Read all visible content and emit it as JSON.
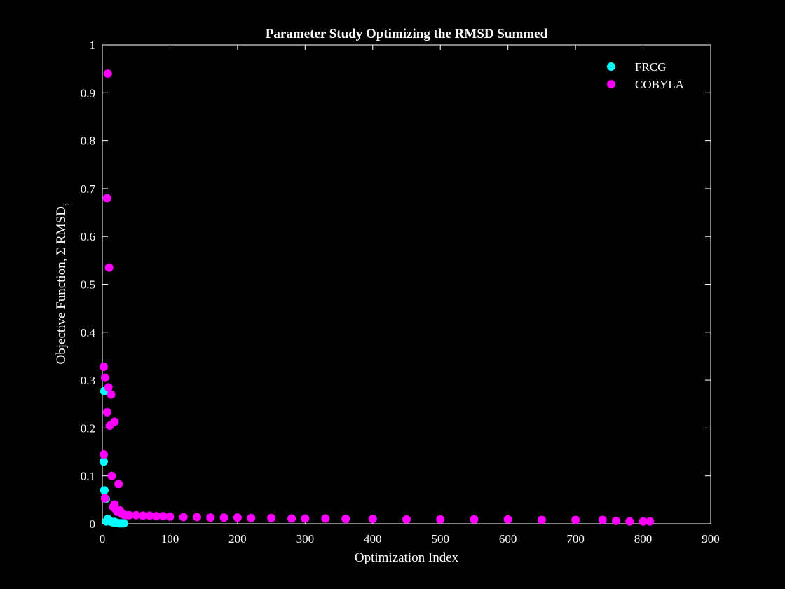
{
  "chart_data": {
    "type": "scatter",
    "title": "Parameter Study Optimizing the RMSD Summed",
    "xlabel": "Optimization Index",
    "ylabel": "Objective Function, Σ RMSD",
    "ylabel_subscript": "i",
    "xlim": [
      0,
      900
    ],
    "ylim": [
      0,
      1
    ],
    "xticks": [
      0,
      100,
      200,
      300,
      400,
      500,
      600,
      700,
      800,
      900
    ],
    "yticks": [
      0,
      0.1,
      0.2,
      0.3,
      0.4,
      0.5,
      0.6,
      0.7,
      0.8,
      0.9,
      1
    ],
    "ytick_labels": [
      "0",
      "0.1",
      "0.2",
      "0.3",
      "0.4",
      "0.5",
      "0.6",
      "0.7",
      "0.8",
      "0.9",
      "1"
    ],
    "grid": false,
    "legend_position": "top-right",
    "series": [
      {
        "name": "FRCG",
        "color": "#00ffff",
        "points": [
          [
            2,
            0.13
          ],
          [
            3,
            0.07
          ],
          [
            3,
            0.277
          ],
          [
            5,
            0.052
          ],
          [
            6,
            0.005
          ],
          [
            8,
            0.01
          ],
          [
            10,
            0.007
          ],
          [
            12,
            0.005
          ],
          [
            14,
            0.004
          ],
          [
            16,
            0.003
          ],
          [
            18,
            0.004
          ],
          [
            20,
            0.002
          ],
          [
            22,
            0.002
          ],
          [
            24,
            0.001
          ],
          [
            26,
            0.001
          ],
          [
            28,
            0.001
          ],
          [
            30,
            0.001
          ],
          [
            32,
            0.001
          ]
        ]
      },
      {
        "name": "COBYLA",
        "color": "#ff00ff",
        "points": [
          [
            2,
            0.145
          ],
          [
            2,
            0.328
          ],
          [
            4,
            0.305
          ],
          [
            4,
            0.053
          ],
          [
            7,
            0.68
          ],
          [
            8,
            0.94
          ],
          [
            7,
            0.233
          ],
          [
            9,
            0.285
          ],
          [
            10,
            0.535
          ],
          [
            11,
            0.205
          ],
          [
            13,
            0.27
          ],
          [
            14,
            0.1
          ],
          [
            16,
            0.035
          ],
          [
            18,
            0.213
          ],
          [
            18,
            0.04
          ],
          [
            20,
            0.03
          ],
          [
            22,
            0.025
          ],
          [
            24,
            0.083
          ],
          [
            26,
            0.028
          ],
          [
            28,
            0.022
          ],
          [
            30,
            0.02
          ],
          [
            32,
            0.019
          ],
          [
            35,
            0.018
          ],
          [
            40,
            0.018
          ],
          [
            50,
            0.018
          ],
          [
            60,
            0.017
          ],
          [
            70,
            0.017
          ],
          [
            80,
            0.016
          ],
          [
            90,
            0.016
          ],
          [
            100,
            0.015
          ],
          [
            120,
            0.014
          ],
          [
            140,
            0.014
          ],
          [
            160,
            0.013
          ],
          [
            180,
            0.013
          ],
          [
            200,
            0.013
          ],
          [
            220,
            0.012
          ],
          [
            250,
            0.012
          ],
          [
            280,
            0.011
          ],
          [
            300,
            0.011
          ],
          [
            330,
            0.011
          ],
          [
            360,
            0.01
          ],
          [
            400,
            0.01
          ],
          [
            450,
            0.009
          ],
          [
            500,
            0.009
          ],
          [
            550,
            0.009
          ],
          [
            600,
            0.009
          ],
          [
            650,
            0.008
          ],
          [
            700,
            0.008
          ],
          [
            740,
            0.008
          ],
          [
            760,
            0.006
          ],
          [
            780,
            0.005
          ],
          [
            800,
            0.005
          ],
          [
            810,
            0.005
          ]
        ]
      }
    ]
  }
}
